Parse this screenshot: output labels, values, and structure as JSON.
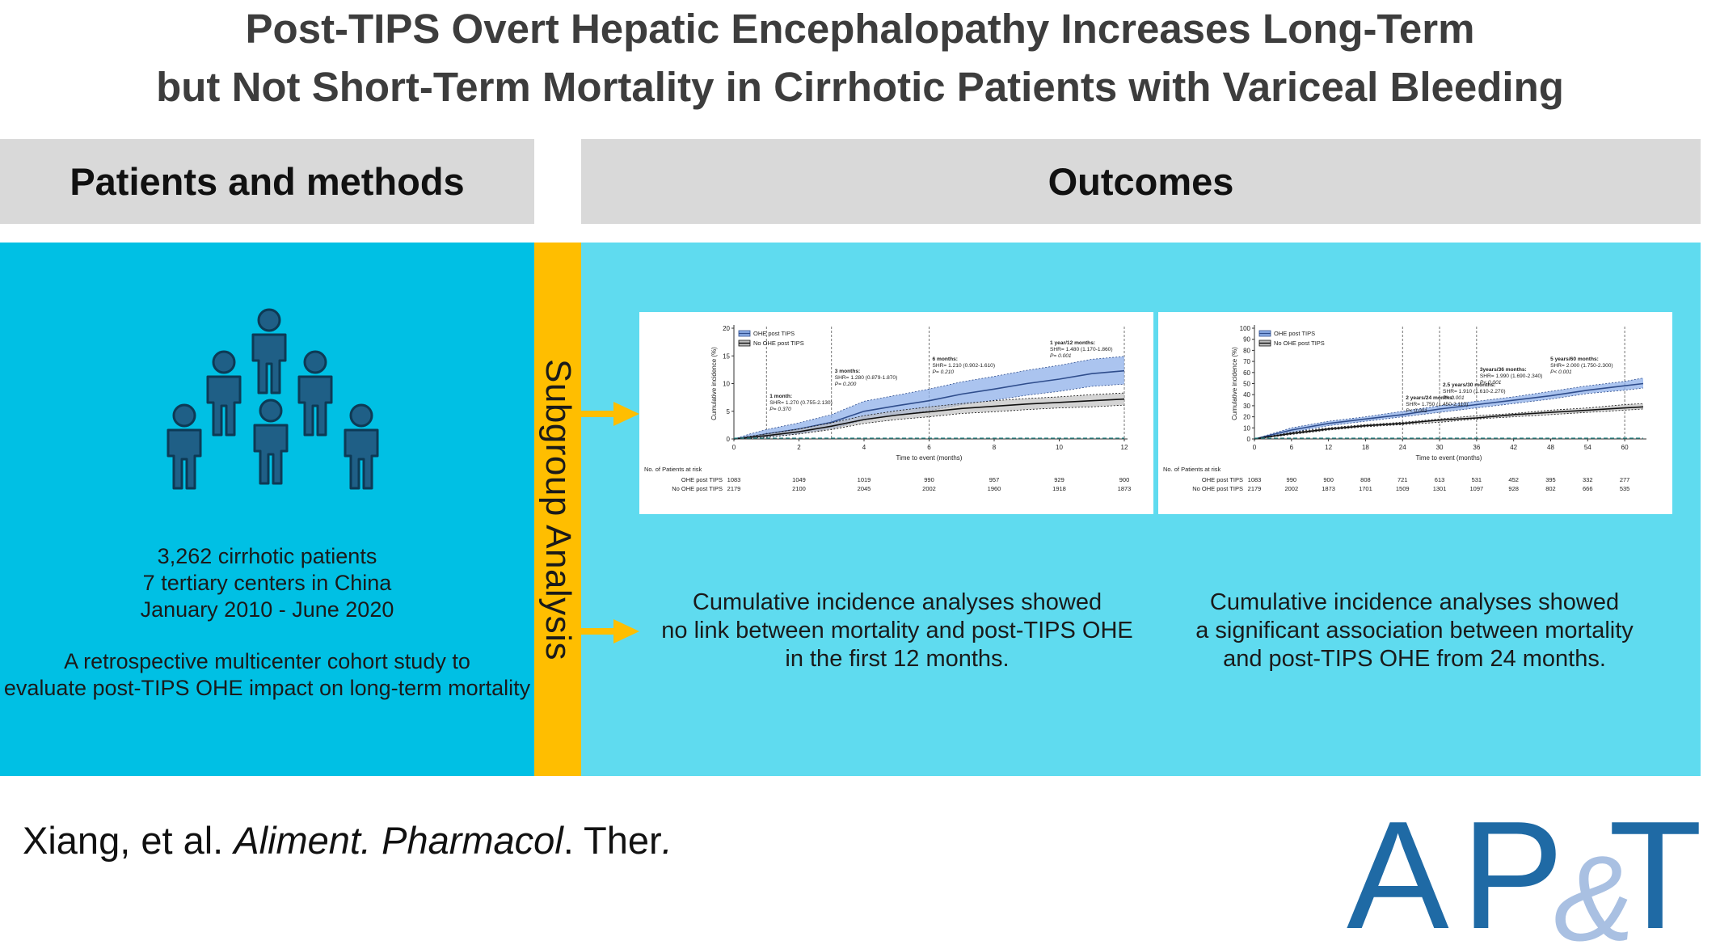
{
  "title": {
    "line1": "Post-TIPS Overt Hepatic Encephalopathy Increases Long-Term",
    "line2": "but Not Short-Term Mortality in Cirrhotic Patients with Variceal Bleeding"
  },
  "headers": {
    "left": "Patients and methods",
    "right": "Outcomes"
  },
  "strip_label": "Subgroup Analysis",
  "left_panel": {
    "line1": "3,262 cirrhotic patients",
    "line2": "7 tertiary centers in China",
    "line3": "January 2010 - June 2020",
    "line4": "A retrospective multicenter cohort study to",
    "line5": "evaluate post-TIPS OHE impact on long-term mortality"
  },
  "right_text": {
    "first": {
      "line1": "Cumulative incidence analyses showed",
      "line2": "no link between mortality and post-TIPS OHE",
      "line3": "in the first 12 months."
    },
    "second": {
      "line1": "Cumulative incidence analyses showed",
      "line2": "a significant association between mortality",
      "line3": "and post-TIPS OHE from 24 months."
    }
  },
  "citation": {
    "authors": "Xiang, et al. ",
    "journal": "Aliment. Pharmacol",
    "suffix": ". Ther",
    "end": "."
  },
  "logo": {
    "text": "AP&T"
  },
  "colors": {
    "left_panel": "#00c0e4",
    "strip": "#ffbe00",
    "right_panel": "#5fdbef",
    "header_bg": "#d9d9d9",
    "ohe_series": "#2f4d8c",
    "ohe_band": "#8fb0ea",
    "no_ohe_series": "#111111",
    "no_ohe_band": "#bdbdbd",
    "logo": "#1f6aa5",
    "logo_amp": "#a9c0e2"
  },
  "chart_data": [
    {
      "type": "line",
      "title": "",
      "xlabel": "Time to event (months)",
      "ylabel": "Cumulative incidence (%)",
      "xlim": [
        0,
        12
      ],
      "ylim": [
        0,
        20
      ],
      "xticks": [
        0,
        2,
        4,
        6,
        8,
        10,
        12
      ],
      "yticks": [
        0,
        5,
        10,
        15,
        20
      ],
      "legend_position": "top-left",
      "series": [
        {
          "name": "OHE post TIPS",
          "x": [
            0,
            0.5,
            1,
            2,
            3,
            4,
            5,
            6,
            7,
            8,
            9,
            10,
            11,
            12
          ],
          "values": [
            0,
            0.4,
            0.9,
            1.8,
            3.0,
            5.0,
            6.0,
            6.9,
            8.1,
            9.0,
            10.0,
            10.8,
            11.8,
            12.3
          ],
          "lower": [
            0,
            0.1,
            0.3,
            0.9,
            1.9,
            3.4,
            4.3,
            5.1,
            6.2,
            7.0,
            7.9,
            8.6,
            9.5,
            9.9
          ],
          "upper": [
            0,
            0.9,
            1.7,
            2.9,
            4.4,
            6.8,
            7.9,
            9.0,
            10.3,
            11.3,
            12.4,
            13.3,
            14.4,
            14.9
          ]
        },
        {
          "name": "No OHE post TIPS",
          "x": [
            0,
            0.5,
            1,
            2,
            3,
            4,
            5,
            6,
            7,
            8,
            9,
            10,
            11,
            12
          ],
          "values": [
            0,
            0.3,
            0.6,
            1.3,
            2.3,
            3.5,
            4.3,
            4.9,
            5.5,
            5.9,
            6.3,
            6.6,
            6.9,
            7.2
          ],
          "lower": [
            0,
            0.1,
            0.3,
            0.9,
            1.7,
            2.8,
            3.5,
            4.0,
            4.6,
            4.9,
            5.3,
            5.6,
            5.8,
            6.1
          ],
          "upper": [
            0,
            0.5,
            0.9,
            1.8,
            2.9,
            4.2,
            5.1,
            5.8,
            6.4,
            6.9,
            7.3,
            7.6,
            8.0,
            8.3
          ]
        }
      ],
      "annotations": [
        {
          "x": 1,
          "lines": [
            "1 month:",
            "SHR= 1.270 (0.755-2.130)",
            "P= 0.370"
          ]
        },
        {
          "x": 3,
          "lines": [
            "3 months:",
            "SHR= 1.280 (0.879-1.870)",
            "P= 0.200"
          ]
        },
        {
          "x": 6,
          "lines": [
            "6 months:",
            "SHR= 1.210 (0.902-1.610)",
            "P= 0.210"
          ]
        },
        {
          "x": 12,
          "lines": [
            "1 year/12 months:",
            "SHR= 1.480 (1.170-1.860)",
            "P= 0.001"
          ]
        }
      ],
      "risk_table": {
        "title": "No. of Patients at risk",
        "rows": [
          {
            "label": "OHE post TIPS",
            "values": [
              1083,
              1049,
              1019,
              990,
              957,
              929,
              900
            ]
          },
          {
            "label": "No OHE post TIPS",
            "values": [
              2179,
              2100,
              2045,
              2002,
              1960,
              1918,
              1873
            ]
          }
        ]
      }
    },
    {
      "type": "line",
      "title": "",
      "xlabel": "Time to event (months)",
      "ylabel": "Cumulative incidence (%)",
      "xlim": [
        0,
        63
      ],
      "ylim": [
        0,
        100
      ],
      "xticks": [
        0,
        6,
        12,
        18,
        24,
        30,
        36,
        42,
        48,
        54,
        60
      ],
      "yticks": [
        0,
        10,
        20,
        30,
        40,
        50,
        60,
        70,
        80,
        90,
        100
      ],
      "legend_position": "top-left",
      "series": [
        {
          "name": "OHE post TIPS",
          "x": [
            0,
            6,
            12,
            18,
            24,
            30,
            36,
            42,
            48,
            54,
            60,
            63
          ],
          "values": [
            0,
            8,
            14,
            18,
            22,
            27,
            31,
            35,
            39,
            44,
            48,
            50
          ],
          "lower": [
            0,
            6,
            12,
            16,
            20,
            24,
            28,
            32,
            36,
            41,
            44,
            46
          ],
          "upper": [
            0,
            10,
            16,
            20,
            25,
            30,
            34,
            38,
            43,
            48,
            52,
            55
          ]
        },
        {
          "name": "No OHE post TIPS",
          "x": [
            0,
            6,
            12,
            18,
            24,
            30,
            36,
            42,
            48,
            54,
            60,
            63
          ],
          "values": [
            0,
            5,
            9,
            12,
            14,
            17,
            19,
            22,
            24,
            26,
            28,
            29
          ],
          "lower": [
            0,
            4,
            8,
            11,
            13,
            15,
            18,
            20,
            22,
            24,
            26,
            27
          ],
          "upper": [
            0,
            6,
            10,
            13,
            15,
            18,
            21,
            23,
            26,
            28,
            31,
            32
          ]
        }
      ],
      "annotations": [
        {
          "x": 24,
          "lines": [
            "2 years/24 months:",
            "SHR= 1.750 (1.450-2.110)",
            "P< 0.001"
          ]
        },
        {
          "x": 30,
          "lines": [
            "2.5 years/30 months:",
            "SHR= 1.910 (1.610-2.270)",
            "P< 0.001"
          ]
        },
        {
          "x": 36,
          "lines": [
            "3years/36 months:",
            "SHR= 1.990 (1.690-2.340)",
            "P< 0.001"
          ]
        },
        {
          "x": 60,
          "lines": [
            "5 years/60 months:",
            "SHR= 2.000 (1.750-2.300)",
            "P< 0.001"
          ]
        }
      ],
      "risk_table": {
        "title": "No. of Patients at risk",
        "rows": [
          {
            "label": "OHE post TIPS",
            "values": [
              1083,
              990,
              900,
              808,
              721,
              613,
              531,
              452,
              395,
              332,
              277
            ]
          },
          {
            "label": "No OHE post TIPS",
            "values": [
              2179,
              2002,
              1873,
              1701,
              1509,
              1301,
              1097,
              928,
              802,
              666,
              535
            ]
          }
        ]
      }
    }
  ]
}
